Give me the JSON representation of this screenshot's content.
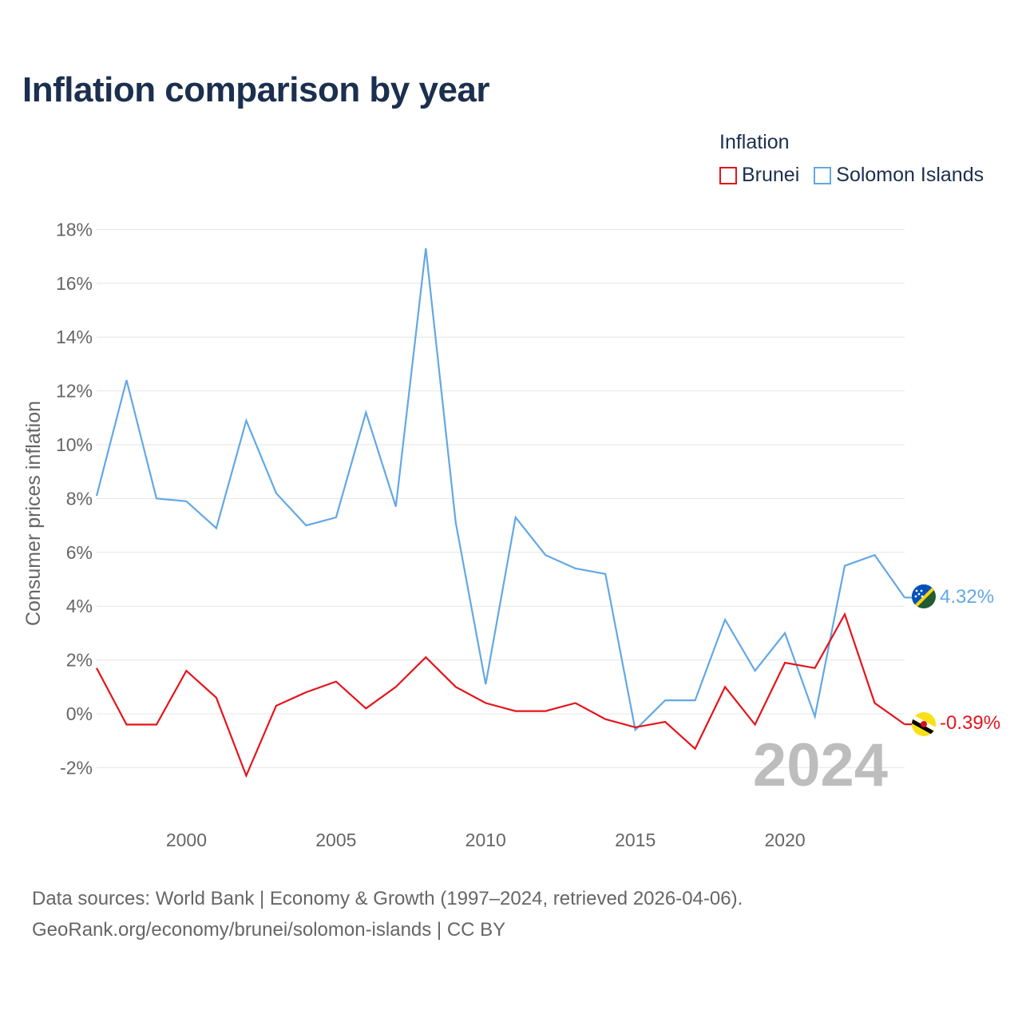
{
  "title": "Inflation comparison by year",
  "legend": {
    "title": "Inflation",
    "items": [
      {
        "label": "Brunei",
        "color": "#e5141b"
      },
      {
        "label": "Solomon Islands",
        "color": "#62a8e5"
      }
    ]
  },
  "year_label": "2024",
  "footer": {
    "line1": "Data sources: World Bank | Economy & Growth (1997–2024, retrieved 2026-04-06).",
    "line2": "GeoRank.org/economy/brunei/solomon-islands | CC BY"
  },
  "chart_data": {
    "type": "line",
    "title": "Inflation comparison by year",
    "xlabel": "",
    "ylabel": "Consumer prices inflation",
    "x": [
      1997,
      1998,
      1999,
      2000,
      2001,
      2002,
      2003,
      2004,
      2005,
      2006,
      2007,
      2008,
      2009,
      2010,
      2011,
      2012,
      2013,
      2014,
      2015,
      2016,
      2017,
      2018,
      2019,
      2020,
      2021,
      2022,
      2023,
      2024
    ],
    "xlim": [
      1997,
      2024
    ],
    "ylim": [
      -3,
      18
    ],
    "xticks": [
      2000,
      2005,
      2010,
      2015,
      2020
    ],
    "yticks": [
      -2,
      0,
      2,
      4,
      6,
      8,
      10,
      12,
      14,
      16,
      18
    ],
    "ytick_labels": [
      "-2%",
      "0%",
      "2%",
      "4%",
      "6%",
      "8%",
      "10%",
      "12%",
      "14%",
      "16%",
      "18%"
    ],
    "grid": true,
    "series": [
      {
        "name": "Solomon Islands",
        "color": "#62a8e5",
        "end_label": "4.32%",
        "flag_icon": "solomon-islands-flag-icon",
        "values": [
          8.1,
          12.4,
          8.0,
          7.9,
          6.9,
          10.9,
          8.2,
          7.0,
          7.3,
          11.2,
          7.7,
          17.3,
          7.1,
          1.1,
          7.3,
          5.9,
          5.4,
          5.2,
          -0.6,
          0.5,
          0.5,
          3.5,
          1.6,
          3.0,
          -0.1,
          5.5,
          5.9,
          4.32
        ]
      },
      {
        "name": "Brunei",
        "color": "#e5141b",
        "end_label": "-0.39%",
        "flag_icon": "brunei-flag-icon",
        "values": [
          1.7,
          -0.4,
          -0.4,
          1.6,
          0.6,
          -2.3,
          0.3,
          0.8,
          1.2,
          0.2,
          1.0,
          2.1,
          1.0,
          0.4,
          0.1,
          0.1,
          0.4,
          -0.2,
          -0.5,
          -0.3,
          -1.3,
          1.0,
          -0.4,
          1.9,
          1.7,
          3.7,
          0.4,
          -0.39
        ]
      }
    ]
  }
}
